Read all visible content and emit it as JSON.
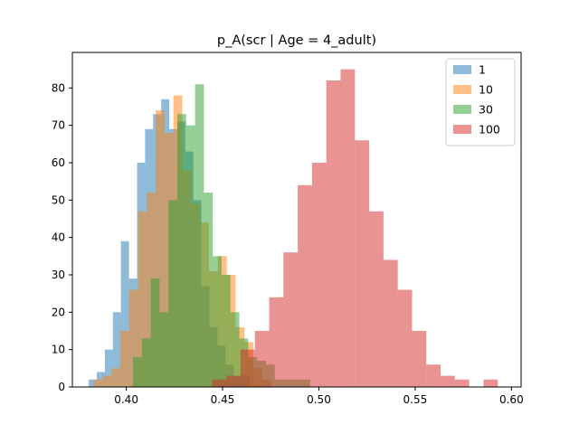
{
  "chart_data": {
    "type": "bar",
    "subtype": "overlaid-histogram",
    "title": "p_A(scr | Age = 4_adult)",
    "xlabel": "",
    "ylabel": "",
    "xlim": [
      0.372,
      0.605
    ],
    "ylim": [
      0,
      89.5
    ],
    "xticks": [
      0.4,
      0.45,
      0.5,
      0.55,
      0.6
    ],
    "xtick_labels": [
      "0.40",
      "0.45",
      "0.50",
      "0.55",
      "0.60"
    ],
    "yticks": [
      0,
      10,
      20,
      30,
      40,
      50,
      60,
      70,
      80
    ],
    "ytick_labels": [
      "0",
      "10",
      "20",
      "30",
      "40",
      "50",
      "60",
      "70",
      "80"
    ],
    "grid": false,
    "legend_position": "top-right",
    "bar_alpha": 0.5,
    "series": [
      {
        "name": "1",
        "color": "#1f77b4",
        "bin_start": 0.3805,
        "bin_width": 0.00418,
        "values": [
          2,
          4,
          10,
          20,
          39,
          29,
          60,
          69,
          73,
          77,
          69,
          71,
          63,
          50,
          27,
          16,
          11,
          6,
          3,
          3
        ]
      },
      {
        "name": "10",
        "color": "#ff7f0e",
        "bin_start": 0.383,
        "bin_width": 0.00461,
        "values": [
          2,
          3,
          5,
          15,
          26,
          47,
          52,
          74,
          68,
          78,
          58,
          49,
          44,
          31,
          35,
          30,
          16,
          12,
          5,
          2
        ]
      },
      {
        "name": "30",
        "color": "#2ca02c",
        "bin_start": 0.4035,
        "bin_width": 0.0046,
        "values": [
          8,
          13,
          29,
          20,
          50,
          73,
          70,
          81,
          52,
          35,
          30,
          20,
          13,
          8,
          7,
          6,
          2,
          2,
          2,
          2
        ]
      },
      {
        "name": "100",
        "color": "#d62728",
        "bin_start": 0.4445,
        "bin_width": 0.00742,
        "values": [
          2,
          3,
          10,
          15,
          24,
          36,
          54,
          60,
          82,
          85,
          66,
          47,
          34,
          26,
          15,
          6,
          3,
          2,
          0,
          2
        ]
      }
    ]
  }
}
